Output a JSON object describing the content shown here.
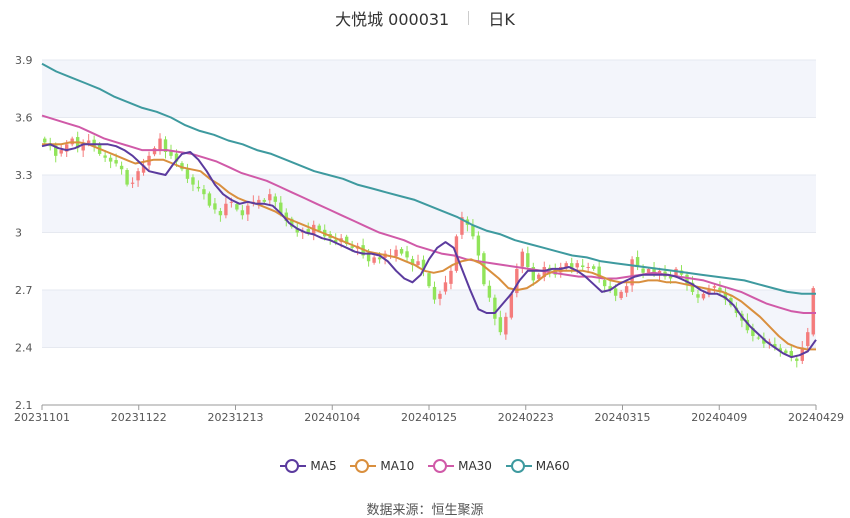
{
  "header": {
    "title": "大悦城 000031",
    "period": "日K"
  },
  "source": {
    "label": "数据来源：",
    "value": "恒生聚源"
  },
  "colors": {
    "up": "#f47c7c",
    "down": "#91e45a",
    "MA5": "#5b3b9e",
    "MA10": "#d98f3e",
    "MA30": "#d05aa8",
    "MA60": "#3e9a9f",
    "band": "#f3f5fb",
    "grid": "#e6e9f0"
  },
  "chart_data": {
    "type": "candlestick",
    "y_range": [
      2.1,
      3.9
    ],
    "y_ticks": [
      "2.1",
      "2.4",
      "2.7",
      "3",
      "3.3",
      "3.6",
      "3.9"
    ],
    "x_ticks": [
      "20231101",
      "20231122",
      "20231213",
      "20240104",
      "20240125",
      "20240223",
      "20240315",
      "20240409",
      "20240429"
    ],
    "legend": [
      "MA5",
      "MA10",
      "MA30",
      "MA60"
    ],
    "close": [
      3.47,
      3.45,
      3.4,
      3.43,
      3.46,
      3.49,
      3.44,
      3.47,
      3.48,
      3.45,
      3.41,
      3.39,
      3.37,
      3.36,
      3.33,
      3.25,
      3.26,
      3.32,
      3.35,
      3.4,
      3.44,
      3.49,
      3.42,
      3.4,
      3.37,
      3.33,
      3.28,
      3.25,
      3.23,
      3.2,
      3.14,
      3.12,
      3.09,
      3.15,
      3.16,
      3.12,
      3.09,
      3.14,
      3.16,
      3.17,
      3.16,
      3.2,
      3.16,
      3.1,
      3.06,
      3.03,
      3.0,
      3.01,
      3.0,
      3.04,
      3.01,
      2.98,
      2.97,
      2.95,
      2.97,
      2.94,
      2.92,
      2.93,
      2.88,
      2.85,
      2.87,
      2.86,
      2.89,
      2.88,
      2.91,
      2.89,
      2.87,
      2.83,
      2.85,
      2.8,
      2.72,
      2.65,
      2.68,
      2.74,
      2.8,
      2.98,
      3.08,
      3.04,
      2.98,
      2.88,
      2.73,
      2.66,
      2.55,
      2.48,
      2.56,
      2.68,
      2.81,
      2.9,
      2.82,
      2.75,
      2.78,
      2.82,
      2.8,
      2.78,
      2.82,
      2.84,
      2.81,
      2.84,
      2.82,
      2.82,
      2.81,
      2.76,
      2.72,
      2.7,
      2.67,
      2.69,
      2.72,
      2.86,
      2.82,
      2.79,
      2.81,
      2.79,
      2.8,
      2.77,
      2.76,
      2.81,
      2.78,
      2.73,
      2.69,
      2.66,
      2.68,
      2.7,
      2.72,
      2.69,
      2.65,
      2.62,
      2.58,
      2.54,
      2.49,
      2.46,
      2.45,
      2.42,
      2.43,
      2.4,
      2.38,
      2.37,
      2.35,
      2.33,
      2.4,
      2.48,
      2.71
    ],
    "ma": {
      "MA5": [
        3.45,
        3.46,
        3.44,
        3.43,
        3.44,
        3.46,
        3.46,
        3.46,
        3.46,
        3.45,
        3.43,
        3.4,
        3.36,
        3.32,
        3.31,
        3.3,
        3.36,
        3.41,
        3.42,
        3.38,
        3.32,
        3.25,
        3.2,
        3.17,
        3.15,
        3.16,
        3.15,
        3.15,
        3.14,
        3.1,
        3.05,
        3.02,
        3.0,
        2.99,
        2.97,
        2.96,
        2.94,
        2.92,
        2.9,
        2.89,
        2.89,
        2.88,
        2.85,
        2.8,
        2.76,
        2.74,
        2.78,
        2.86,
        2.92,
        2.95,
        2.92,
        2.81,
        2.7,
        2.6,
        2.58,
        2.58,
        2.63,
        2.68,
        2.75,
        2.8,
        2.8,
        2.8,
        2.81,
        2.81,
        2.82,
        2.8,
        2.77,
        2.73,
        2.69,
        2.7,
        2.73,
        2.75,
        2.77,
        2.78,
        2.78,
        2.78,
        2.78,
        2.77,
        2.75,
        2.73,
        2.7,
        2.68,
        2.68,
        2.66,
        2.62,
        2.56,
        2.51,
        2.47,
        2.43,
        2.4,
        2.37,
        2.35,
        2.36,
        2.38,
        2.44
      ],
      "MA10": [
        3.46,
        3.46,
        3.46,
        3.47,
        3.47,
        3.46,
        3.44,
        3.42,
        3.4,
        3.38,
        3.36,
        3.37,
        3.38,
        3.38,
        3.36,
        3.34,
        3.33,
        3.32,
        3.28,
        3.25,
        3.21,
        3.18,
        3.16,
        3.15,
        3.13,
        3.11,
        3.08,
        3.06,
        3.04,
        3.02,
        3.0,
        2.98,
        2.96,
        2.94,
        2.92,
        2.9,
        2.89,
        2.88,
        2.87,
        2.85,
        2.83,
        2.8,
        2.79,
        2.8,
        2.83,
        2.85,
        2.86,
        2.84,
        2.8,
        2.76,
        2.71,
        2.7,
        2.71,
        2.74,
        2.78,
        2.8,
        2.8,
        2.8,
        2.8,
        2.79,
        2.77,
        2.75,
        2.74,
        2.74,
        2.74,
        2.75,
        2.75,
        2.74,
        2.74,
        2.73,
        2.72,
        2.71,
        2.7,
        2.69,
        2.67,
        2.64,
        2.6,
        2.56,
        2.51,
        2.46,
        2.42,
        2.4,
        2.39,
        2.39
      ],
      "MA30": [
        3.61,
        3.59,
        3.57,
        3.55,
        3.52,
        3.49,
        3.47,
        3.45,
        3.43,
        3.43,
        3.43,
        3.42,
        3.41,
        3.39,
        3.37,
        3.34,
        3.31,
        3.29,
        3.27,
        3.24,
        3.21,
        3.18,
        3.15,
        3.12,
        3.09,
        3.06,
        3.03,
        3.0,
        2.98,
        2.96,
        2.93,
        2.91,
        2.89,
        2.88,
        2.86,
        2.85,
        2.84,
        2.83,
        2.82,
        2.81,
        2.8,
        2.79,
        2.78,
        2.77,
        2.77,
        2.76,
        2.76,
        2.77,
        2.78,
        2.79,
        2.78,
        2.77,
        2.76,
        2.75,
        2.73,
        2.71,
        2.69,
        2.66,
        2.63,
        2.61,
        2.59,
        2.58,
        2.58
      ],
      "MA60": [
        3.88,
        3.84,
        3.81,
        3.78,
        3.75,
        3.71,
        3.68,
        3.65,
        3.63,
        3.6,
        3.56,
        3.53,
        3.51,
        3.48,
        3.46,
        3.43,
        3.41,
        3.38,
        3.35,
        3.32,
        3.3,
        3.28,
        3.25,
        3.23,
        3.21,
        3.19,
        3.17,
        3.14,
        3.11,
        3.08,
        3.04,
        3.01,
        2.99,
        2.96,
        2.94,
        2.92,
        2.9,
        2.88,
        2.87,
        2.85,
        2.84,
        2.83,
        2.82,
        2.81,
        2.8,
        2.79,
        2.78,
        2.77,
        2.76,
        2.75,
        2.73,
        2.71,
        2.69,
        2.68,
        2.68
      ]
    }
  }
}
